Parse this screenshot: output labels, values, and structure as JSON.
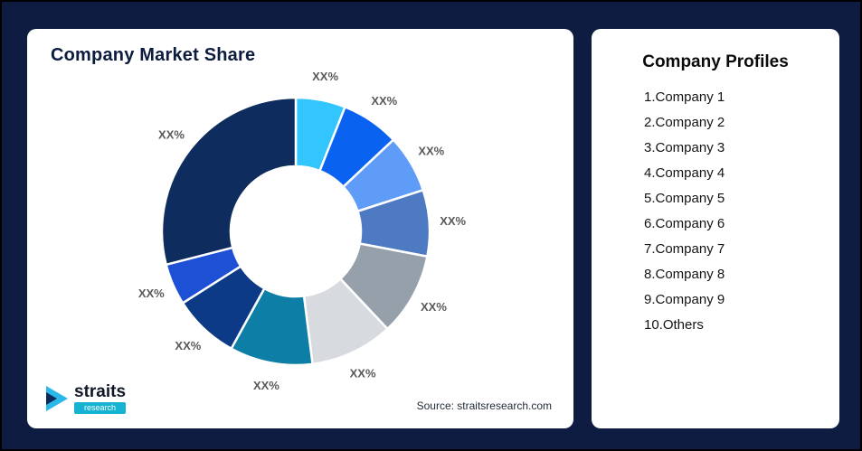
{
  "page": {
    "background_color": "#0d1c40"
  },
  "left_card": {
    "title": "Company Market Share",
    "source": "Source: straitsresearch.com",
    "logo": {
      "name": "straits",
      "sub": "research"
    }
  },
  "right_card": {
    "title": "Company Profiles",
    "items": [
      "1.Company 1",
      "2.Company 2",
      "3.Company 3",
      "4.Company 4",
      "5.Company 5",
      "6.Company 6",
      "7.Company 7",
      "8.Company 8",
      "9.Company 9",
      "10.Others"
    ]
  },
  "chart_data": {
    "type": "pie",
    "donut": true,
    "title": "Company Market Share",
    "legend_position": "none",
    "label_color": "#595959",
    "segments": [
      {
        "label": "XX%",
        "value": 6,
        "color": "#33c5fd"
      },
      {
        "label": "XX%",
        "value": 7,
        "color": "#0a62f0"
      },
      {
        "label": "XX%",
        "value": 7,
        "color": "#5f9cf8"
      },
      {
        "label": "XX%",
        "value": 8,
        "color": "#4d7ac2"
      },
      {
        "label": "XX%",
        "value": 10,
        "color": "#95a0ab"
      },
      {
        "label": "XX%",
        "value": 10,
        "color": "#d7dbe0"
      },
      {
        "label": "XX%",
        "value": 10,
        "color": "#0d7fa6"
      },
      {
        "label": "XX%",
        "value": 8,
        "color": "#0d3a86"
      },
      {
        "label": "XX%",
        "value": 5,
        "color": "#1e50d6"
      },
      {
        "label": "XX%",
        "value": 29,
        "color": "#0e2c5e"
      }
    ]
  }
}
